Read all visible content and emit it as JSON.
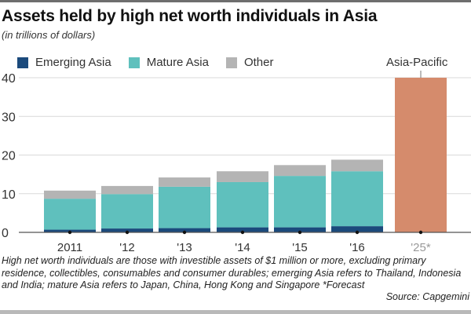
{
  "chart_data": {
    "type": "bar",
    "stacked": true,
    "title": "Assets held by high net worth individuals in Asia",
    "subtitle": "(in trillions of dollars)",
    "xlabel": "",
    "ylabel": "",
    "ylim": [
      0,
      40
    ],
    "yticks": [
      0,
      10,
      20,
      30,
      40
    ],
    "grid": true,
    "legend_position": "top-left",
    "categories": [
      "2011",
      "'12",
      "'13",
      "'14",
      "'15",
      "'16",
      "'25*"
    ],
    "series": [
      {
        "name": "Emerging Asia",
        "color": "#1b4a7c",
        "values": [
          0.7,
          1.0,
          1.1,
          1.3,
          1.3,
          1.6,
          null
        ]
      },
      {
        "name": "Mature Asia",
        "color": "#5fc0bd",
        "values": [
          8.0,
          8.9,
          10.7,
          11.7,
          13.3,
          14.2,
          null
        ]
      },
      {
        "name": "Other",
        "color": "#b4b4b4",
        "values": [
          2.1,
          2.1,
          2.4,
          2.8,
          2.8,
          3.0,
          null
        ]
      },
      {
        "name": "Asia-Pacific",
        "color": "#d58b6c",
        "values": [
          null,
          null,
          null,
          null,
          null,
          null,
          40
        ]
      }
    ],
    "annotations": [
      {
        "text": "Asia-Pacific",
        "category": "'25*"
      }
    ],
    "forecast_category": "'25*"
  },
  "legend": {
    "items": [
      {
        "label": "Emerging Asia",
        "color": "#1b4a7c"
      },
      {
        "label": "Mature Asia",
        "color": "#5fc0bd"
      },
      {
        "label": "Other",
        "color": "#b4b4b4"
      }
    ]
  },
  "footnote": "High net worth individuals are those with investible assets of $1 million or more, excluding primary residence, collectibles, consumables and consumer durables; emerging Asia refers to Thailand, Indonesia and India; mature Asia refers to Japan, China, Hong Kong and Singapore  *Forecast",
  "source": "Source: Capgemini"
}
